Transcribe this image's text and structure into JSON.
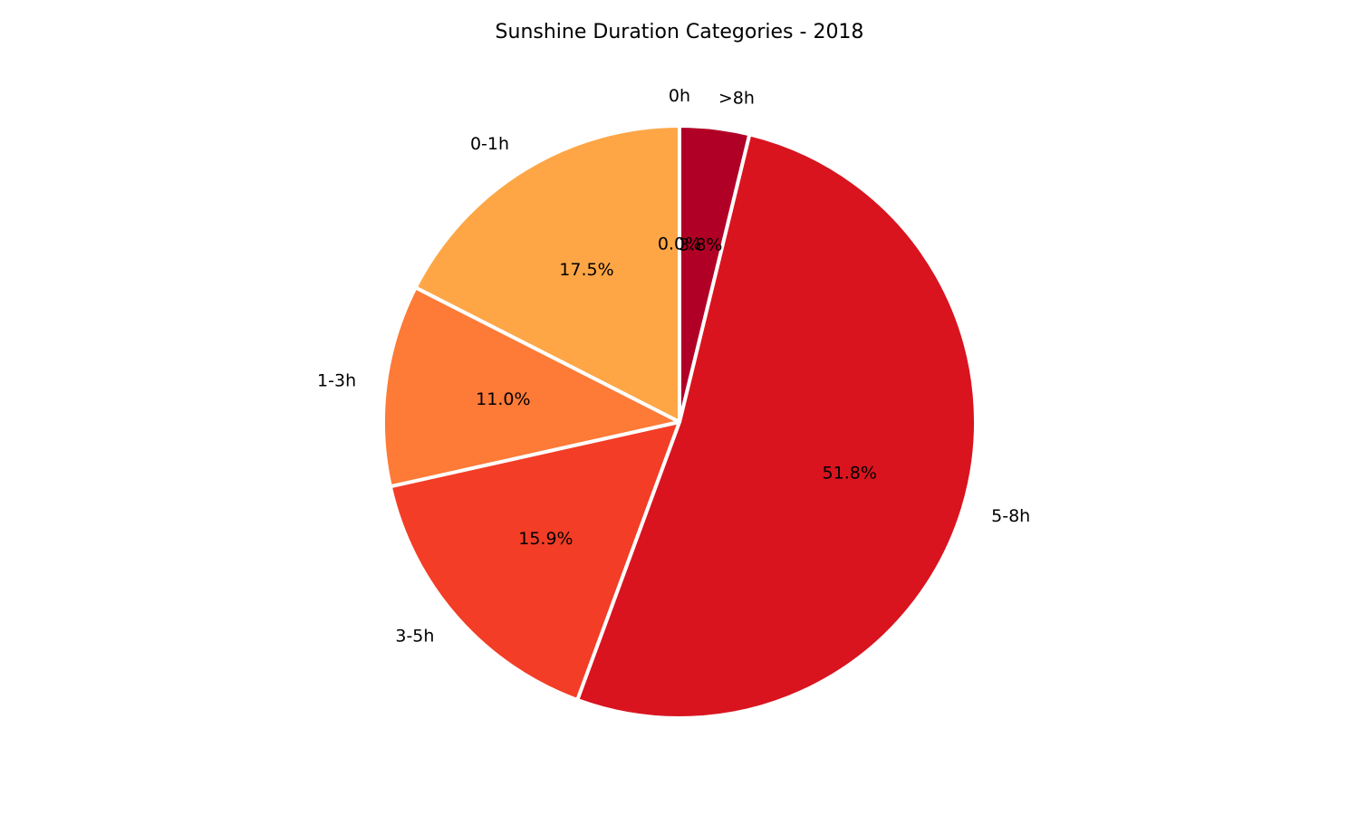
{
  "chart_data": {
    "type": "pie",
    "title": "Sunshine Duration Categories - 2018",
    "start_angle_deg": 90,
    "direction": "counterclockwise",
    "slices": [
      {
        "label": "0h",
        "value": 0.0,
        "pct_label": "0.0%",
        "color": "#fed976"
      },
      {
        "label": "0-1h",
        "value": 17.5,
        "pct_label": "17.5%",
        "color": "#fea646"
      },
      {
        "label": "1-3h",
        "value": 11.0,
        "pct_label": "11.0%",
        "color": "#fd7a37"
      },
      {
        "label": "3-5h",
        "value": 15.9,
        "pct_label": "15.9%",
        "color": "#f33d26"
      },
      {
        "label": "5-8h",
        "value": 51.8,
        "pct_label": "51.8%",
        "color": "#d9141f"
      },
      {
        "label": ">8h",
        "value": 3.8,
        "pct_label": "3.8%",
        "color": "#b10026"
      }
    ],
    "wedge_edge_color": "#ffffff"
  }
}
